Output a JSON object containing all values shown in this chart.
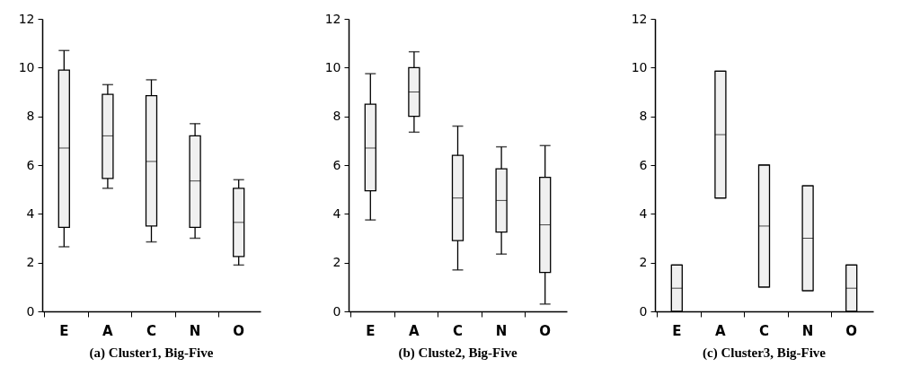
{
  "chart_data": [
    {
      "type": "box",
      "title": "(a)  Cluster1, Big-Five",
      "categories": [
        "E",
        "A",
        "C",
        "N",
        "O"
      ],
      "ylim": [
        0,
        12
      ],
      "yticks": [
        0,
        2,
        4,
        6,
        8,
        10,
        12
      ],
      "boxes": [
        {
          "low": 2.65,
          "q1": 3.45,
          "median": 6.7,
          "q3": 9.9,
          "high": 10.7
        },
        {
          "low": 5.05,
          "q1": 5.45,
          "median": 7.2,
          "q3": 8.9,
          "high": 9.3
        },
        {
          "low": 2.85,
          "q1": 3.5,
          "median": 6.15,
          "q3": 8.85,
          "high": 9.5
        },
        {
          "low": 3.0,
          "q1": 3.45,
          "median": 5.35,
          "q3": 7.2,
          "high": 7.7
        },
        {
          "low": 1.9,
          "q1": 2.25,
          "median": 3.65,
          "q3": 5.05,
          "high": 5.4
        }
      ]
    },
    {
      "type": "box",
      "title": "(b)  Cluste2, Big-Five",
      "categories": [
        "E",
        "A",
        "C",
        "N",
        "O"
      ],
      "ylim": [
        0,
        12
      ],
      "yticks": [
        0,
        2,
        4,
        6,
        8,
        10,
        12
      ],
      "boxes": [
        {
          "low": 3.75,
          "q1": 4.95,
          "median": 6.7,
          "q3": 8.5,
          "high": 9.75
        },
        {
          "low": 7.35,
          "q1": 8.0,
          "median": 9.0,
          "q3": 10.0,
          "high": 10.65
        },
        {
          "low": 1.7,
          "q1": 2.9,
          "median": 4.65,
          "q3": 6.4,
          "high": 7.6
        },
        {
          "low": 2.35,
          "q1": 3.25,
          "median": 4.55,
          "q3": 5.85,
          "high": 6.75
        },
        {
          "low": 0.3,
          "q1": 1.6,
          "median": 3.55,
          "q3": 5.5,
          "high": 6.8
        }
      ]
    },
    {
      "type": "box",
      "title": "(c) Cluster3, Big-Five",
      "categories": [
        "E",
        "A",
        "C",
        "N",
        "O"
      ],
      "ylim": [
        0,
        12
      ],
      "yticks": [
        0,
        2,
        4,
        6,
        8,
        10,
        12
      ],
      "boxes": [
        {
          "low": 0,
          "q1": 0,
          "median": 0.95,
          "q3": 1.9,
          "high": 1.9
        },
        {
          "low": 4.65,
          "q1": 4.65,
          "median": 7.25,
          "q3": 9.85,
          "high": 9.85
        },
        {
          "low": 1.0,
          "q1": 1.0,
          "median": 3.5,
          "q3": 6.0,
          "high": 6.0
        },
        {
          "low": 0.85,
          "q1": 0.85,
          "median": 3.0,
          "q3": 5.15,
          "high": 5.15
        },
        {
          "low": 0,
          "q1": 0,
          "median": 0.95,
          "q3": 1.9,
          "high": 1.9
        }
      ]
    }
  ]
}
